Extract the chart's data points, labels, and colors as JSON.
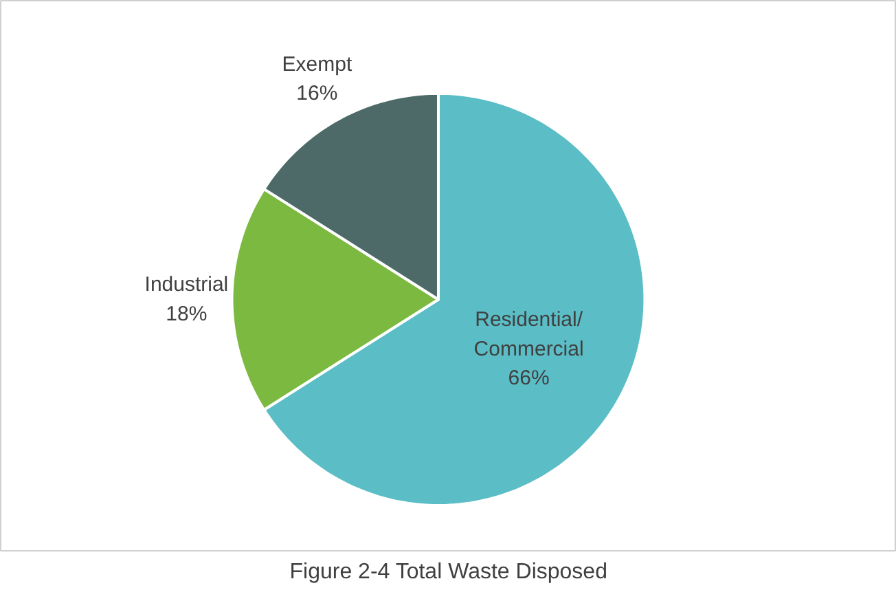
{
  "chart_data": {
    "type": "pie",
    "title": "Figure 2-4 Total Waste Disposed",
    "categories": [
      "Residential/Commercial",
      "Industrial",
      "Exempt"
    ],
    "values": [
      66,
      18,
      16
    ],
    "value_labels": [
      "66%",
      "18%",
      "16%"
    ],
    "colors": [
      "#5bbdc6",
      "#7cb940",
      "#4e6a68"
    ]
  }
}
